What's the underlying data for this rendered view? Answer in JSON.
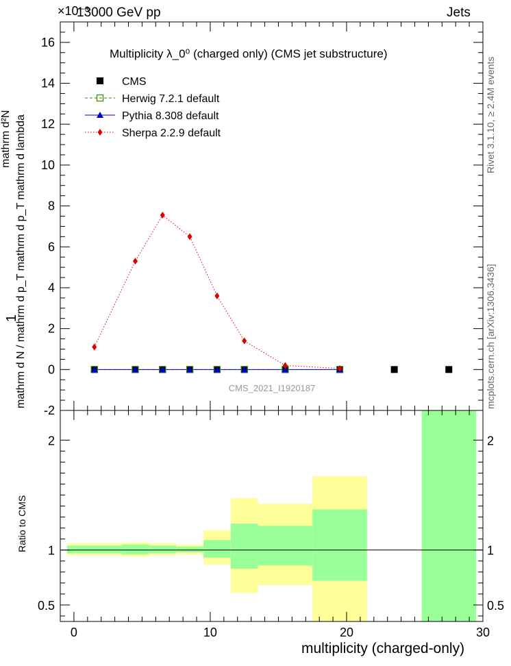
{
  "header": {
    "energy_label": "13000 GeV pp",
    "exponent_label": "×10⁻³",
    "category": "Jets",
    "side_rivet": "Rivet 3.1.10, ≥ 2.4M events",
    "side_mcplots": "mcplots.cern.ch [arXiv:1306.3436]"
  },
  "chart_data": [
    {
      "type": "scatter",
      "title": "Multiplicity  λ_0⁰ (charged only) (CMS jet substructure)",
      "ylabel_numerator": "1",
      "ylabel_denominator": "mathrm d N / mathrm d p_T mathrm d p_T mathrm d lambda",
      "ylabel_fraction_top": "mathrm d²N",
      "watermark": "CMS_2021_I1920187",
      "xlim": [
        -1,
        30
      ],
      "ylim": [
        -2.0,
        17.0
      ],
      "y_multiplier": "1e-3",
      "yticks": [
        -2,
        0,
        2,
        4,
        6,
        8,
        10,
        12,
        14,
        16
      ],
      "legend_position": "top-left",
      "series": [
        {
          "name": "CMS",
          "color": "#000000",
          "marker": "square",
          "x": [
            1.5,
            4.5,
            6.5,
            8.5,
            10.5,
            12.5,
            15.5,
            19.5,
            23.5,
            27.5
          ],
          "y": [
            0.0,
            0.0,
            0.0,
            0.0,
            0.0,
            0.0,
            0.0,
            0.0,
            0.0,
            0.0
          ]
        },
        {
          "name": "Herwig 7.2.1 default",
          "color": "#2e8b00",
          "marker": "open-square",
          "line": "dashed",
          "x": [
            1.5,
            4.5,
            6.5,
            8.5,
            10.5,
            12.5,
            15.5,
            19.5
          ],
          "y": [
            0.0,
            0.0,
            0.0,
            0.0,
            0.0,
            0.0,
            0.0,
            0.0
          ]
        },
        {
          "name": "Pythia 8.308 default",
          "color": "#0000cc",
          "marker": "triangle",
          "line": "solid",
          "x": [
            1.5,
            4.5,
            6.5,
            8.5,
            10.5,
            12.5,
            15.5,
            19.5
          ],
          "y": [
            0.0,
            0.0,
            0.0,
            0.0,
            0.0,
            0.0,
            0.0,
            0.0
          ]
        },
        {
          "name": "Sherpa 2.2.9 default",
          "color": "#dd0000",
          "marker": "diamond",
          "line": "dotted",
          "x": [
            1.5,
            4.5,
            6.5,
            8.5,
            10.5,
            12.5,
            15.5,
            19.5
          ],
          "y": [
            1.1,
            5.3,
            7.55,
            6.5,
            3.6,
            1.4,
            0.2,
            0.05
          ]
        }
      ]
    },
    {
      "type": "area",
      "ylabel": "Ratio to CMS",
      "xlabel": "multiplicity (charged-only)",
      "xlim": [
        -1,
        30
      ],
      "ylim": [
        0.35,
        2.27
      ],
      "xticks": [
        0,
        10,
        20,
        30
      ],
      "yticks": [
        0.5,
        1,
        2
      ],
      "reference_line": 1,
      "bands": [
        {
          "x0": -0.5,
          "x1": 3.5,
          "stat_lo": 0.97,
          "stat_hi": 1.04,
          "tot_lo": 0.95,
          "tot_hi": 1.06
        },
        {
          "x0": 3.5,
          "x1": 5.5,
          "stat_lo": 0.96,
          "stat_hi": 1.05,
          "tot_lo": 0.94,
          "tot_hi": 1.07
        },
        {
          "x0": 5.5,
          "x1": 7.5,
          "stat_lo": 0.97,
          "stat_hi": 1.04,
          "tot_lo": 0.95,
          "tot_hi": 1.06
        },
        {
          "x0": 7.5,
          "x1": 9.5,
          "stat_lo": 0.98,
          "stat_hi": 1.03,
          "tot_lo": 0.96,
          "tot_hi": 1.05
        },
        {
          "x0": 9.5,
          "x1": 11.5,
          "stat_lo": 0.93,
          "stat_hi": 1.09,
          "tot_lo": 0.87,
          "tot_hi": 1.18
        },
        {
          "x0": 11.5,
          "x1": 13.5,
          "stat_lo": 0.83,
          "stat_hi": 1.24,
          "tot_lo": 0.61,
          "tot_hi": 1.47
        },
        {
          "x0": 13.5,
          "x1": 17.5,
          "stat_lo": 0.86,
          "stat_hi": 1.22,
          "tot_lo": 0.68,
          "tot_hi": 1.42
        },
        {
          "x0": 17.5,
          "x1": 21.5,
          "stat_lo": 0.72,
          "stat_hi": 1.37,
          "tot_lo": 0.35,
          "tot_hi": 1.67
        },
        {
          "x0": 25.5,
          "x1": 29.5,
          "stat_lo": 0.35,
          "stat_hi": 2.27,
          "tot_lo": 0.35,
          "tot_hi": 2.27
        }
      ]
    }
  ],
  "colors": {
    "stat_band": "#99ff99",
    "total_band": "#ffff99",
    "frame": "#000000",
    "side_text": "#666666"
  }
}
